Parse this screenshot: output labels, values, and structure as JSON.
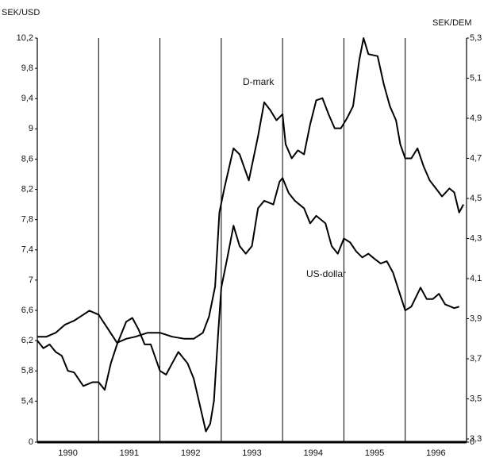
{
  "chart_data": {
    "type": "line",
    "ylabel": "SEK/USD",
    "y2label": "SEK/DEM",
    "annotations": [
      "D-mark",
      "US-dollar"
    ],
    "categories": [
      "1990",
      "1991",
      "1992",
      "1993",
      "1994",
      "1995",
      "1996"
    ],
    "xlim": [
      1990,
      1997
    ],
    "ylim": [
      4.9,
      10.2
    ],
    "yticks": [
      0,
      {
        "value": 5.4,
        "label": "5,4"
      },
      {
        "value": 5.8,
        "label": "5,8"
      },
      {
        "value": 6.2,
        "label": "6,2"
      },
      {
        "value": 6.6,
        "label": "6,6"
      },
      7,
      {
        "value": 7.4,
        "label": "7,4"
      },
      {
        "value": 7.8,
        "label": "7,8"
      },
      {
        "value": 8.2,
        "label": "8,2"
      },
      {
        "value": 8.6,
        "label": "8,6"
      },
      9,
      {
        "value": 9.4,
        "label": "9,4"
      },
      {
        "value": 9.8,
        "label": "9,8"
      },
      {
        "value": 10.2,
        "label": "10,2"
      }
    ],
    "y2lim": [
      3.3,
      5.3
    ],
    "y2ticks": [
      0,
      {
        "value": 3.3,
        "label": "3,3"
      },
      {
        "value": 3.5,
        "label": "3,5"
      },
      {
        "value": 3.7,
        "label": "3,7"
      },
      {
        "value": 3.9,
        "label": "3,9"
      },
      {
        "value": 4.1,
        "label": "4,1"
      },
      {
        "value": 4.3,
        "label": "4,3"
      },
      {
        "value": 4.5,
        "label": "4,5"
      },
      {
        "value": 4.7,
        "label": "4,7"
      },
      {
        "value": 4.9,
        "label": "4,9"
      },
      {
        "value": 5.1,
        "label": "5,1"
      },
      {
        "value": 5.3,
        "label": "5,3"
      }
    ],
    "series": [
      {
        "name": "US-dollar",
        "color": "#000000",
        "axis": "y",
        "x": [
          1990.0,
          1990.1,
          1990.2,
          1990.3,
          1990.4,
          1990.5,
          1990.6,
          1990.75,
          1990.9,
          1991.0,
          1991.1,
          1991.2,
          1991.3,
          1991.45,
          1991.55,
          1991.65,
          1991.75,
          1991.85,
          1992.0,
          1992.1,
          1992.2,
          1992.3,
          1992.45,
          1992.55,
          1992.65,
          1992.75,
          1992.82,
          1992.88,
          1992.95,
          1993.0,
          1993.1,
          1993.2,
          1993.3,
          1993.4,
          1993.5,
          1993.6,
          1993.7,
          1993.85,
          1993.95,
          1994.0,
          1994.1,
          1994.2,
          1994.35,
          1994.45,
          1994.55,
          1994.7,
          1994.8,
          1994.9,
          1995.0,
          1995.1,
          1995.2,
          1995.3,
          1995.4,
          1995.5,
          1995.6,
          1995.7,
          1995.8,
          1995.9,
          1996.0,
          1996.1,
          1996.25,
          1996.35,
          1996.45,
          1996.55,
          1996.65,
          1996.8,
          1996.88
        ],
        "values": [
          6.2,
          6.1,
          6.15,
          6.05,
          6.0,
          5.8,
          5.78,
          5.6,
          5.65,
          5.65,
          5.55,
          5.9,
          6.15,
          6.45,
          6.5,
          6.35,
          6.15,
          6.15,
          5.8,
          5.75,
          5.9,
          6.05,
          5.9,
          5.7,
          5.35,
          5.0,
          5.1,
          5.4,
          6.3,
          6.9,
          7.3,
          7.72,
          7.45,
          7.35,
          7.45,
          7.95,
          8.05,
          8.0,
          8.3,
          8.35,
          8.15,
          8.05,
          7.95,
          7.75,
          7.85,
          7.75,
          7.45,
          7.35,
          7.55,
          7.5,
          7.38,
          7.3,
          7.35,
          7.28,
          7.22,
          7.25,
          7.1,
          6.85,
          6.6,
          6.65,
          6.9,
          6.75,
          6.75,
          6.82,
          6.68,
          6.63,
          6.65
        ]
      },
      {
        "name": "D-mark",
        "color": "#000000",
        "axis": "y2",
        "x": [
          1990.0,
          1990.15,
          1990.3,
          1990.45,
          1990.6,
          1990.75,
          1990.85,
          1991.0,
          1991.15,
          1991.3,
          1991.45,
          1991.6,
          1991.8,
          1992.0,
          1992.2,
          1992.4,
          1992.55,
          1992.7,
          1992.8,
          1992.9,
          1992.97,
          1993.05,
          1993.2,
          1993.3,
          1993.45,
          1993.6,
          1993.7,
          1993.8,
          1993.9,
          1994.0,
          1994.05,
          1994.15,
          1994.25,
          1994.35,
          1994.45,
          1994.55,
          1994.65,
          1994.75,
          1994.85,
          1994.95,
          1995.05,
          1995.15,
          1995.25,
          1995.32,
          1995.4,
          1995.55,
          1995.65,
          1995.75,
          1995.85,
          1995.92,
          1996.0,
          1996.1,
          1996.2,
          1996.3,
          1996.4,
          1996.5,
          1996.6,
          1996.72,
          1996.8,
          1996.88,
          1996.95
        ],
        "values": [
          3.81,
          3.81,
          3.83,
          3.87,
          3.89,
          3.92,
          3.94,
          3.92,
          3.85,
          3.78,
          3.8,
          3.81,
          3.83,
          3.83,
          3.81,
          3.8,
          3.8,
          3.83,
          3.91,
          4.06,
          4.43,
          4.55,
          4.75,
          4.72,
          4.59,
          4.81,
          4.98,
          4.94,
          4.89,
          4.92,
          4.77,
          4.7,
          4.74,
          4.72,
          4.87,
          4.99,
          5.0,
          4.92,
          4.85,
          4.85,
          4.9,
          4.96,
          5.19,
          5.3,
          5.22,
          5.21,
          5.07,
          4.96,
          4.89,
          4.77,
          4.7,
          4.7,
          4.75,
          4.66,
          4.59,
          4.55,
          4.51,
          4.55,
          4.53,
          4.43,
          4.47
        ]
      }
    ]
  }
}
